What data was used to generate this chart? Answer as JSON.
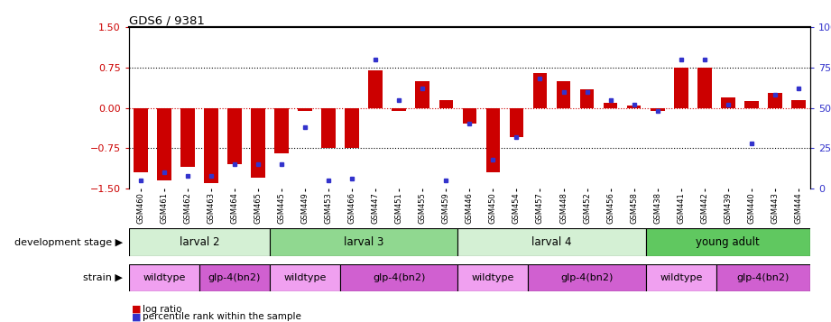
{
  "title": "GDS6 / 9381",
  "samples": [
    "GSM460",
    "GSM461",
    "GSM462",
    "GSM463",
    "GSM464",
    "GSM465",
    "GSM445",
    "GSM449",
    "GSM453",
    "GSM466",
    "GSM447",
    "GSM451",
    "GSM455",
    "GSM459",
    "GSM446",
    "GSM450",
    "GSM454",
    "GSM457",
    "GSM448",
    "GSM452",
    "GSM456",
    "GSM458",
    "GSM438",
    "GSM441",
    "GSM442",
    "GSM439",
    "GSM440",
    "GSM443",
    "GSM444"
  ],
  "log_ratio": [
    -1.2,
    -1.35,
    -1.1,
    -1.4,
    -1.05,
    -1.3,
    -0.85,
    -0.05,
    -0.75,
    -0.75,
    0.7,
    -0.05,
    0.5,
    0.15,
    -0.3,
    -1.2,
    -0.55,
    0.65,
    0.5,
    0.35,
    0.1,
    0.05,
    -0.05,
    0.75,
    0.75,
    0.2,
    0.12,
    0.28,
    0.15
  ],
  "percentile": [
    5,
    10,
    8,
    8,
    15,
    15,
    15,
    38,
    5,
    6,
    80,
    55,
    62,
    5,
    40,
    18,
    32,
    68,
    60,
    60,
    55,
    52,
    48,
    80,
    80,
    52,
    28,
    58,
    62
  ],
  "dev_stages": [
    {
      "label": "larval 2",
      "start": 0,
      "end": 6,
      "color": "#d4f0d4"
    },
    {
      "label": "larval 3",
      "start": 6,
      "end": 14,
      "color": "#90d890"
    },
    {
      "label": "larval 4",
      "start": 14,
      "end": 22,
      "color": "#d4f0d4"
    },
    {
      "label": "young adult",
      "start": 22,
      "end": 29,
      "color": "#60c860"
    }
  ],
  "strains": [
    {
      "label": "wildtype",
      "start": 0,
      "end": 3,
      "color": "#f0a0f0"
    },
    {
      "label": "glp-4(bn2)",
      "start": 3,
      "end": 6,
      "color": "#d060d0"
    },
    {
      "label": "wildtype",
      "start": 6,
      "end": 9,
      "color": "#f0a0f0"
    },
    {
      "label": "glp-4(bn2)",
      "start": 9,
      "end": 14,
      "color": "#d060d0"
    },
    {
      "label": "wildtype",
      "start": 14,
      "end": 17,
      "color": "#f0a0f0"
    },
    {
      "label": "glp-4(bn2)",
      "start": 17,
      "end": 22,
      "color": "#d060d0"
    },
    {
      "label": "wildtype",
      "start": 22,
      "end": 25,
      "color": "#f0a0f0"
    },
    {
      "label": "glp-4(bn2)",
      "start": 25,
      "end": 29,
      "color": "#d060d0"
    }
  ],
  "ylim": [
    -1.5,
    1.5
  ],
  "yticks_left": [
    -1.5,
    -0.75,
    0.0,
    0.75,
    1.5
  ],
  "yticks_right": [
    0,
    25,
    50,
    75,
    100
  ],
  "bar_color": "#cc0000",
  "dot_color": "#3333cc",
  "hline_color": "#cc0000",
  "dot_line_color": "#000000",
  "label_color_dev": "development stage",
  "label_color_str": "strain"
}
